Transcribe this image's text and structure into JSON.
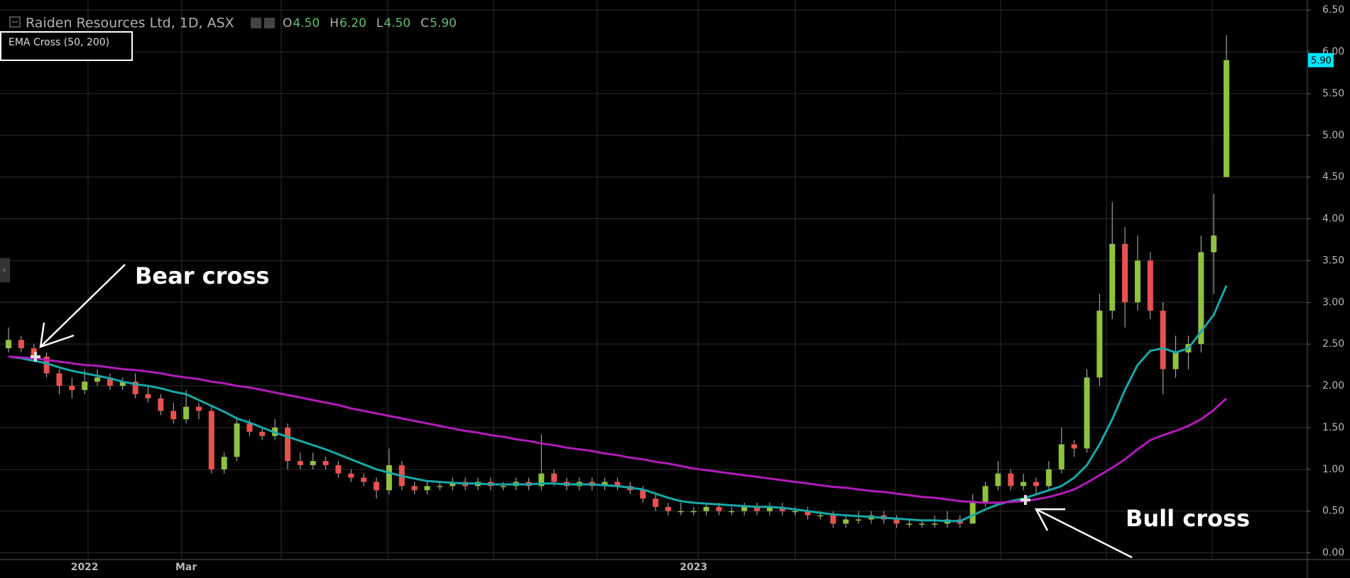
{
  "chart_data": {
    "type": "candlestick",
    "title": "Raiden Resources Ltd, 1D, ASX",
    "ohlc": [
      {
        "label": "O",
        "value": "4.50"
      },
      {
        "label": "H",
        "value": "6.20"
      },
      {
        "label": "L",
        "value": "4.50"
      },
      {
        "label": "C",
        "value": "5.90"
      }
    ],
    "indicator": "EMA Cross (50, 200)",
    "last_price_label": "5.90",
    "annotations": [
      "Bear cross",
      "Bull cross"
    ],
    "categories": [
      null,
      null,
      null,
      null,
      null,
      null,
      "2022",
      null,
      null,
      null,
      null,
      null,
      null,
      null,
      "Mar",
      null,
      null,
      null,
      null,
      null,
      null,
      null,
      null,
      null,
      null,
      null,
      null,
      null,
      null,
      null,
      null,
      null,
      null,
      null,
      null,
      null,
      null,
      null,
      null,
      null,
      null,
      null,
      null,
      null,
      null,
      null,
      null,
      null,
      null,
      null,
      null,
      null,
      null,
      null,
      "2023",
      null,
      null,
      null,
      null,
      null,
      null,
      null,
      null,
      null,
      null,
      null,
      null,
      null,
      null,
      null,
      null,
      null,
      null,
      null,
      null,
      null,
      null,
      null,
      null,
      null,
      null,
      null,
      null,
      null,
      null,
      null,
      null,
      null,
      null,
      null,
      null,
      null,
      null,
      null,
      null,
      null,
      null
    ],
    "candles": [
      [
        2.45,
        2.7,
        2.4,
        2.55
      ],
      [
        2.55,
        2.6,
        2.4,
        2.45
      ],
      [
        2.45,
        2.5,
        2.3,
        2.35
      ],
      [
        2.35,
        2.4,
        2.1,
        2.15
      ],
      [
        2.15,
        2.2,
        1.9,
        2.0
      ],
      [
        2.0,
        2.1,
        1.85,
        1.95
      ],
      [
        1.95,
        2.2,
        1.9,
        2.05
      ],
      [
        2.05,
        2.2,
        2.0,
        2.1
      ],
      [
        2.1,
        2.15,
        1.95,
        2.0
      ],
      [
        2.0,
        2.1,
        1.95,
        2.05
      ],
      [
        2.05,
        2.15,
        1.85,
        1.9
      ],
      [
        1.9,
        2.0,
        1.8,
        1.85
      ],
      [
        1.85,
        1.9,
        1.65,
        1.7
      ],
      [
        1.7,
        1.8,
        1.55,
        1.6
      ],
      [
        1.6,
        1.95,
        1.55,
        1.75
      ],
      [
        1.75,
        1.8,
        1.6,
        1.7
      ],
      [
        1.7,
        1.75,
        0.95,
        1.0
      ],
      [
        1.0,
        1.2,
        0.95,
        1.15
      ],
      [
        1.15,
        1.6,
        1.1,
        1.55
      ],
      [
        1.55,
        1.6,
        1.4,
        1.45
      ],
      [
        1.45,
        1.5,
        1.35,
        1.4
      ],
      [
        1.4,
        1.6,
        1.35,
        1.5
      ],
      [
        1.5,
        1.55,
        1.0,
        1.1
      ],
      [
        1.1,
        1.2,
        1.0,
        1.05
      ],
      [
        1.05,
        1.2,
        1.0,
        1.1
      ],
      [
        1.1,
        1.15,
        1.0,
        1.05
      ],
      [
        1.05,
        1.1,
        0.9,
        0.95
      ],
      [
        0.95,
        1.0,
        0.85,
        0.9
      ],
      [
        0.9,
        0.95,
        0.8,
        0.85
      ],
      [
        0.85,
        0.9,
        0.65,
        0.75
      ],
      [
        0.75,
        1.25,
        0.7,
        1.05
      ],
      [
        1.05,
        1.1,
        0.75,
        0.8
      ],
      [
        0.8,
        0.85,
        0.7,
        0.75
      ],
      [
        0.75,
        0.85,
        0.7,
        0.8
      ],
      [
        0.8,
        0.85,
        0.75,
        0.8
      ],
      [
        0.8,
        0.9,
        0.75,
        0.85
      ],
      [
        0.85,
        0.9,
        0.75,
        0.8
      ],
      [
        0.8,
        0.9,
        0.75,
        0.85
      ],
      [
        0.85,
        0.9,
        0.75,
        0.8
      ],
      [
        0.8,
        0.85,
        0.75,
        0.8
      ],
      [
        0.8,
        0.9,
        0.75,
        0.85
      ],
      [
        0.85,
        0.9,
        0.75,
        0.8
      ],
      [
        0.8,
        1.42,
        0.75,
        0.95
      ],
      [
        0.95,
        1.0,
        0.8,
        0.85
      ],
      [
        0.85,
        0.9,
        0.75,
        0.8
      ],
      [
        0.8,
        0.9,
        0.75,
        0.85
      ],
      [
        0.85,
        0.9,
        0.75,
        0.8
      ],
      [
        0.8,
        0.9,
        0.75,
        0.85
      ],
      [
        0.85,
        0.9,
        0.75,
        0.8
      ],
      [
        0.8,
        0.85,
        0.7,
        0.75
      ],
      [
        0.75,
        0.8,
        0.6,
        0.65
      ],
      [
        0.65,
        0.7,
        0.5,
        0.55
      ],
      [
        0.55,
        0.6,
        0.45,
        0.5
      ],
      [
        0.5,
        0.6,
        0.45,
        0.5
      ],
      [
        0.5,
        0.55,
        0.45,
        0.5
      ],
      [
        0.5,
        0.6,
        0.45,
        0.55
      ],
      [
        0.55,
        0.6,
        0.45,
        0.5
      ],
      [
        0.5,
        0.55,
        0.45,
        0.5
      ],
      [
        0.5,
        0.6,
        0.45,
        0.55
      ],
      [
        0.55,
        0.6,
        0.45,
        0.5
      ],
      [
        0.5,
        0.6,
        0.45,
        0.55
      ],
      [
        0.55,
        0.6,
        0.45,
        0.5
      ],
      [
        0.5,
        0.55,
        0.45,
        0.5
      ],
      [
        0.5,
        0.55,
        0.4,
        0.45
      ],
      [
        0.45,
        0.5,
        0.4,
        0.45
      ],
      [
        0.45,
        0.5,
        0.3,
        0.35
      ],
      [
        0.35,
        0.45,
        0.3,
        0.4
      ],
      [
        0.4,
        0.5,
        0.35,
        0.4
      ],
      [
        0.4,
        0.5,
        0.35,
        0.45
      ],
      [
        0.45,
        0.5,
        0.35,
        0.4
      ],
      [
        0.4,
        0.45,
        0.3,
        0.35
      ],
      [
        0.35,
        0.4,
        0.3,
        0.35
      ],
      [
        0.35,
        0.4,
        0.3,
        0.35
      ],
      [
        0.35,
        0.45,
        0.3,
        0.35
      ],
      [
        0.35,
        0.5,
        0.3,
        0.4
      ],
      [
        0.4,
        0.45,
        0.3,
        0.35
      ],
      [
        0.35,
        0.7,
        0.35,
        0.6
      ],
      [
        0.6,
        0.85,
        0.55,
        0.8
      ],
      [
        0.8,
        1.1,
        0.75,
        0.95
      ],
      [
        0.95,
        1.0,
        0.75,
        0.8
      ],
      [
        0.8,
        0.95,
        0.75,
        0.85
      ],
      [
        0.85,
        0.9,
        0.7,
        0.8
      ],
      [
        0.8,
        1.1,
        0.75,
        1.0
      ],
      [
        1.0,
        1.5,
        0.95,
        1.3
      ],
      [
        1.3,
        1.35,
        1.15,
        1.25
      ],
      [
        1.25,
        2.2,
        1.2,
        2.1
      ],
      [
        2.1,
        3.1,
        2.0,
        2.9
      ],
      [
        2.9,
        4.2,
        2.8,
        3.7
      ],
      [
        3.7,
        3.9,
        2.7,
        3.0
      ],
      [
        3.0,
        3.8,
        2.9,
        3.5
      ],
      [
        3.5,
        3.6,
        2.8,
        2.9
      ],
      [
        2.9,
        3.0,
        1.9,
        2.2
      ],
      [
        2.2,
        2.6,
        2.1,
        2.4
      ],
      [
        2.4,
        2.6,
        2.2,
        2.5
      ],
      [
        2.5,
        3.8,
        2.4,
        3.6
      ],
      [
        3.6,
        4.3,
        3.1,
        3.8
      ],
      [
        4.5,
        6.2,
        4.5,
        5.9
      ]
    ],
    "up_color": "#8fc23f",
    "down_color": "#e8514f",
    "series": [
      {
        "color": "#17a8a8",
        "values": [
          2.35,
          2.33,
          2.3,
          2.27,
          2.22,
          2.18,
          2.15,
          2.12,
          2.09,
          2.05,
          2.02,
          2.0,
          1.97,
          1.93,
          1.9,
          1.83,
          1.76,
          1.69,
          1.61,
          1.56,
          1.5,
          1.44,
          1.39,
          1.34,
          1.29,
          1.24,
          1.18,
          1.12,
          1.06,
          1.0,
          0.96,
          0.92,
          0.89,
          0.86,
          0.85,
          0.84,
          0.83,
          0.83,
          0.82,
          0.82,
          0.82,
          0.82,
          0.83,
          0.83,
          0.82,
          0.82,
          0.82,
          0.81,
          0.8,
          0.78,
          0.76,
          0.71,
          0.66,
          0.62,
          0.6,
          0.59,
          0.58,
          0.57,
          0.56,
          0.55,
          0.55,
          0.54,
          0.52,
          0.5,
          0.48,
          0.46,
          0.45,
          0.44,
          0.43,
          0.42,
          0.41,
          0.4,
          0.39,
          0.39,
          0.38,
          0.38,
          0.45,
          0.52,
          0.58,
          0.62,
          0.65,
          0.7,
          0.75,
          0.8,
          0.9,
          1.05,
          1.3,
          1.6,
          1.95,
          2.25,
          2.42,
          2.45,
          2.4,
          2.45,
          2.65,
          2.85,
          3.2
        ]
      },
      {
        "color": "#b01cb8",
        "values": [
          2.35,
          2.34,
          2.33,
          2.31,
          2.29,
          2.27,
          2.25,
          2.24,
          2.22,
          2.2,
          2.19,
          2.17,
          2.15,
          2.12,
          2.1,
          2.08,
          2.05,
          2.03,
          2.0,
          1.98,
          1.95,
          1.92,
          1.89,
          1.86,
          1.83,
          1.8,
          1.77,
          1.73,
          1.7,
          1.67,
          1.64,
          1.61,
          1.58,
          1.55,
          1.52,
          1.49,
          1.46,
          1.44,
          1.41,
          1.39,
          1.36,
          1.34,
          1.31,
          1.29,
          1.26,
          1.24,
          1.22,
          1.19,
          1.17,
          1.14,
          1.12,
          1.09,
          1.07,
          1.04,
          1.01,
          0.99,
          0.97,
          0.95,
          0.93,
          0.91,
          0.89,
          0.87,
          0.85,
          0.83,
          0.81,
          0.79,
          0.78,
          0.76,
          0.74,
          0.73,
          0.71,
          0.69,
          0.67,
          0.66,
          0.64,
          0.62,
          0.61,
          0.6,
          0.6,
          0.61,
          0.62,
          0.64,
          0.67,
          0.71,
          0.76,
          0.84,
          0.93,
          1.02,
          1.12,
          1.24,
          1.35,
          1.41,
          1.46,
          1.52,
          1.6,
          1.71,
          1.85
        ]
      }
    ],
    "ylim": [
      -0.08,
      6.62
    ],
    "yticks": [
      {
        "value": 0,
        "label": "0.00"
      },
      {
        "value": 0.5,
        "label": "0.50"
      },
      {
        "value": 1,
        "label": "1.00"
      },
      {
        "value": 1.5,
        "label": "1.50"
      },
      {
        "value": 2,
        "label": "2.00"
      },
      {
        "value": 2.5,
        "label": "2.50"
      },
      {
        "value": 3,
        "label": "3.00"
      },
      {
        "value": 3.5,
        "label": "3.50"
      },
      {
        "value": 4,
        "label": "4.00"
      },
      {
        "value": 4.5,
        "label": "4.50"
      },
      {
        "value": 5,
        "label": "5.00"
      },
      {
        "value": 5.5,
        "label": "5.50"
      },
      {
        "value": 6,
        "label": "6.00"
      },
      {
        "value": 6.5,
        "label": "6.50"
      }
    ],
    "grid": true
  }
}
